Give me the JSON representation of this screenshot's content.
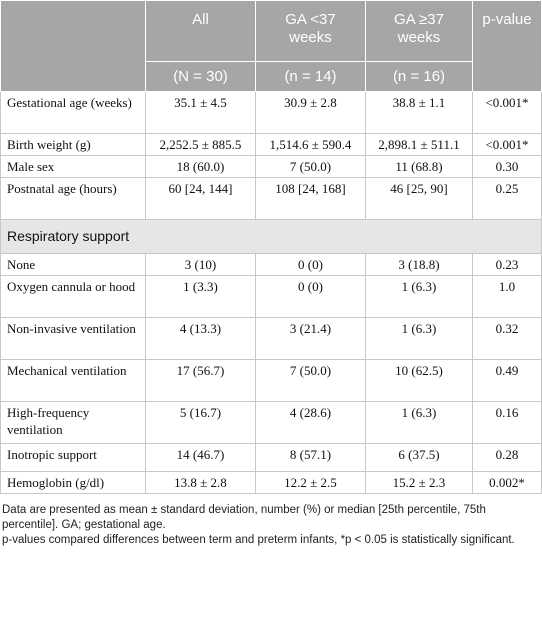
{
  "header": {
    "columns": [
      "All",
      "GA <37 weeks",
      "GA ≥37 weeks",
      "p-value"
    ],
    "counts": [
      "(N = 30)",
      "(n = 14)",
      "(n = 16)"
    ]
  },
  "table": {
    "rows": [
      [
        "Gestational age (weeks)",
        "35.1 ± 4.5",
        "30.9 ± 2.8",
        "38.8 ± 1.1",
        "<0.001*"
      ],
      [
        "Birth weight (g)",
        "2,252.5 ± 885.5",
        "1,514.6 ± 590.4",
        "2,898.1 ± 511.1",
        "<0.001*"
      ],
      [
        "Male sex",
        "18 (60.0)",
        "7 (50.0)",
        "11 (68.8)",
        "0.30"
      ],
      [
        "Postnatal age (hours)",
        "60 [24, 144]",
        "108 [24, 168]",
        "46 [25, 90]",
        "0.25"
      ]
    ],
    "section": "Respiratory support",
    "section_rows": [
      [
        "None",
        "3 (10)",
        "0 (0)",
        "3 (18.8)",
        "0.23"
      ],
      [
        "Oxygen cannula or hood",
        "1 (3.3)",
        "0 (0)",
        "1 (6.3)",
        "1.0"
      ],
      [
        "Non-invasive ventilation",
        "4 (13.3)",
        "3 (21.4)",
        "1 (6.3)",
        "0.32"
      ],
      [
        "Mechanical ventilation",
        "17 (56.7)",
        "7 (50.0)",
        "10 (62.5)",
        "0.49"
      ],
      [
        "High-frequency ventilation",
        "5 (16.7)",
        "4 (28.6)",
        "1 (6.3)",
        "0.16"
      ],
      [
        "Inotropic support",
        "14 (46.7)",
        "8 (57.1)",
        "6 (37.5)",
        "0.28"
      ],
      [
        "Hemoglobin (g/dl)",
        "13.8 ± 2.8",
        "12.2 ± 2.5",
        "15.2 ± 2.3",
        "0.002*"
      ]
    ]
  },
  "footnotes": [
    "Data are presented as mean ± standard deviation, number (%) or median [25th percentile, 75th percentile]. GA; gestational age.",
    "p-values compared differences between term and preterm infants, *p < 0.05 is statistically significant."
  ]
}
